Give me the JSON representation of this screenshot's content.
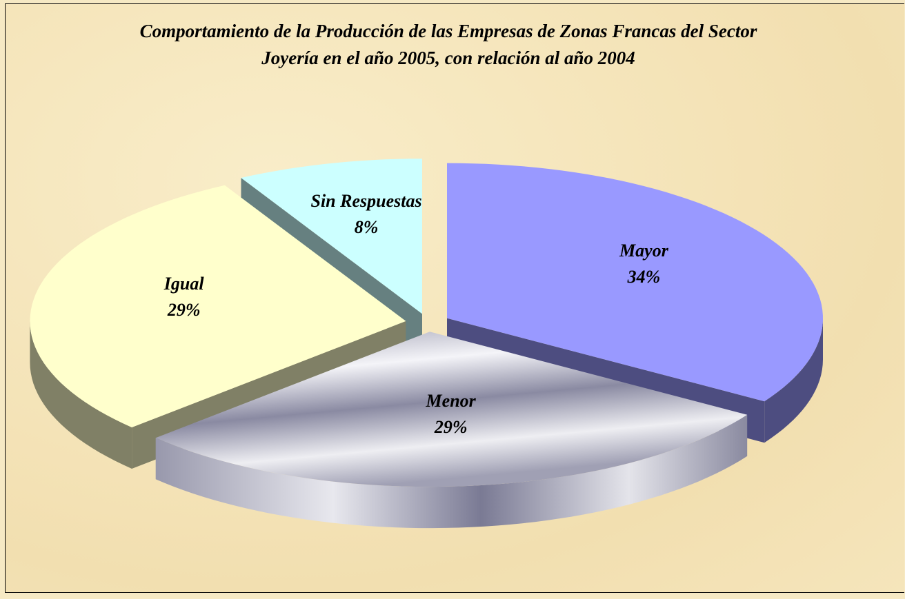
{
  "chart_data": {
    "type": "pie",
    "title": "Comportamiento de la Producción de las Empresas de Zonas Francas del Sector Joyería en el año 2005, con relación al año 2004",
    "categories": [
      "Mayor",
      "Menor",
      "Igual",
      "Sin Respuestas"
    ],
    "values": [
      34,
      29,
      29,
      8
    ],
    "value_labels": [
      "34%",
      "29%",
      "29%",
      "8%"
    ],
    "colors": [
      "#9999ff",
      "#c8c8d4",
      "#ffffcc",
      "#ccffff"
    ]
  }
}
